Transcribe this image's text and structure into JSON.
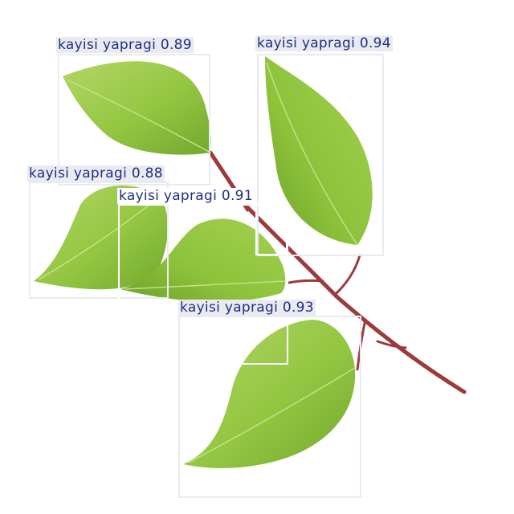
{
  "colors": {
    "background": "#ffffff",
    "leaf_light": "#a7cf5a",
    "leaf_mid": "#8fc33e",
    "leaf_dark": "#6ea52c",
    "vein": "#c9e08f",
    "stem": "#9c3a3c",
    "box": "#e9ebf1",
    "box_bright": "#ffffff",
    "label_bg": "#e9ebf1",
    "label_text": "#1f2f82"
  },
  "detections": [
    {
      "id": "d1",
      "label": "kayisi yapragi 0.89",
      "class": "kayisi yapragi",
      "confidence": 0.89
    },
    {
      "id": "d2",
      "label": "kayisi yapragi 0.94",
      "class": "kayisi yapragi",
      "confidence": 0.94
    },
    {
      "id": "d3",
      "label": "kayisi yapragi 0.88",
      "class": "kayisi yapragi",
      "confidence": 0.88
    },
    {
      "id": "d4",
      "label": "kayisi yapragi 0.91",
      "class": "kayisi yapragi",
      "confidence": 0.91
    },
    {
      "id": "d5",
      "label": "kayisi yapragi 0.93",
      "class": "kayisi yapragi",
      "confidence": 0.93
    }
  ]
}
